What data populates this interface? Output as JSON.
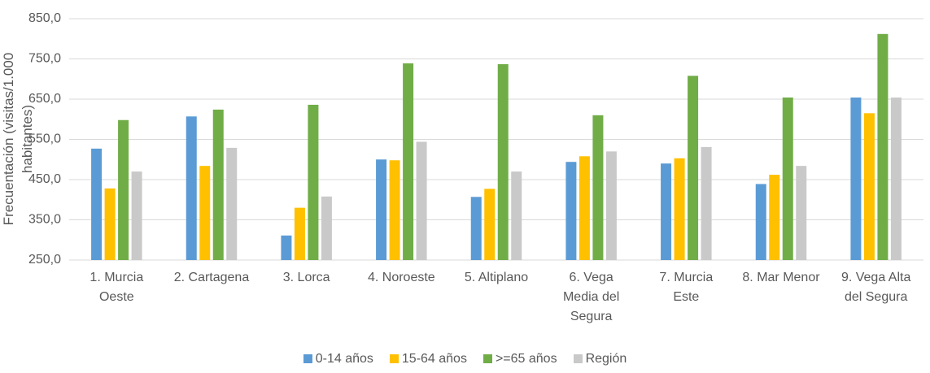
{
  "chart_data": {
    "type": "bar",
    "ylabel": "Frecuentación (visitas/1.000 habitantes)",
    "categories": [
      "1. Murcia Oeste",
      "2. Cartagena",
      "3. Lorca",
      "4. Noroeste",
      "5. Altiplano",
      "6. Vega Media del Segura",
      "7. Murcia Este",
      "8. Mar Menor",
      "9. Vega Alta del Segura"
    ],
    "series": [
      {
        "name": "0-14 años",
        "color": "#5b9bd5",
        "values": [
          527,
          607,
          311,
          500,
          407,
          494,
          490,
          439,
          654
        ]
      },
      {
        "name": "15-64 años",
        "color": "#ffc000",
        "values": [
          428,
          484,
          380,
          498,
          427,
          508,
          503,
          462,
          615
        ]
      },
      {
        "name": ">=65 años",
        "color": "#70ad47",
        "values": [
          598,
          624,
          636,
          739,
          737,
          610,
          708,
          654,
          812
        ]
      },
      {
        "name": "Región",
        "color": "#c9c9c9",
        "values": [
          470,
          529,
          408,
          544,
          470,
          520,
          531,
          484,
          654
        ]
      }
    ],
    "ylim": [
      250,
      850
    ],
    "yticks": [
      {
        "value": 250,
        "label": "250,0"
      },
      {
        "value": 350,
        "label": "350,0"
      },
      {
        "value": 450,
        "label": "450,0"
      },
      {
        "value": 550,
        "label": "550,0"
      },
      {
        "value": 650,
        "label": "650,0"
      },
      {
        "value": 750,
        "label": "750,0"
      },
      {
        "value": 850,
        "label": "850,0"
      }
    ],
    "grid": true,
    "legend": "bottom"
  }
}
